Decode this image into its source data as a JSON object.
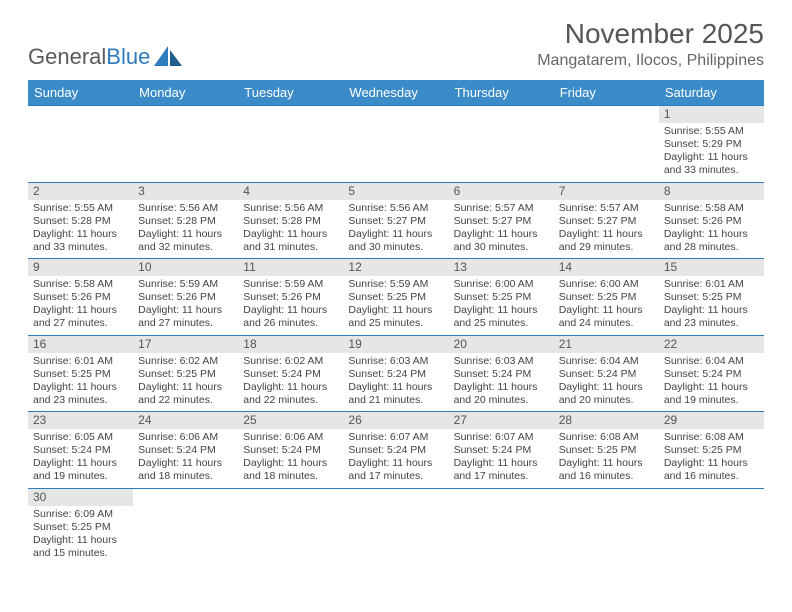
{
  "logo": {
    "general": "General",
    "blue": "Blue"
  },
  "title": "November 2025",
  "location": "Mangatarem, Ilocos, Philippines",
  "colors": {
    "header_bg": "#3b8bc9",
    "header_text": "#ffffff",
    "daynum_bg": "#e6e6e6",
    "border": "#2f7bbf",
    "body_text": "#444444",
    "title_text": "#555555",
    "location_text": "#666666",
    "logo_gray": "#5a5a5a",
    "logo_blue": "#2f7bbf",
    "page_bg": "#ffffff"
  },
  "font": {
    "family": "Arial",
    "th_size": 13,
    "td_size": 10.5,
    "title_size": 28,
    "location_size": 16
  },
  "daynames": [
    "Sunday",
    "Monday",
    "Tuesday",
    "Wednesday",
    "Thursday",
    "Friday",
    "Saturday"
  ],
  "weeks": [
    [
      null,
      null,
      null,
      null,
      null,
      null,
      {
        "n": "1",
        "sr": "Sunrise: 5:55 AM",
        "ss": "Sunset: 5:29 PM",
        "dl": "Daylight: 11 hours and 33 minutes."
      }
    ],
    [
      {
        "n": "2",
        "sr": "Sunrise: 5:55 AM",
        "ss": "Sunset: 5:28 PM",
        "dl": "Daylight: 11 hours and 33 minutes."
      },
      {
        "n": "3",
        "sr": "Sunrise: 5:56 AM",
        "ss": "Sunset: 5:28 PM",
        "dl": "Daylight: 11 hours and 32 minutes."
      },
      {
        "n": "4",
        "sr": "Sunrise: 5:56 AM",
        "ss": "Sunset: 5:28 PM",
        "dl": "Daylight: 11 hours and 31 minutes."
      },
      {
        "n": "5",
        "sr": "Sunrise: 5:56 AM",
        "ss": "Sunset: 5:27 PM",
        "dl": "Daylight: 11 hours and 30 minutes."
      },
      {
        "n": "6",
        "sr": "Sunrise: 5:57 AM",
        "ss": "Sunset: 5:27 PM",
        "dl": "Daylight: 11 hours and 30 minutes."
      },
      {
        "n": "7",
        "sr": "Sunrise: 5:57 AM",
        "ss": "Sunset: 5:27 PM",
        "dl": "Daylight: 11 hours and 29 minutes."
      },
      {
        "n": "8",
        "sr": "Sunrise: 5:58 AM",
        "ss": "Sunset: 5:26 PM",
        "dl": "Daylight: 11 hours and 28 minutes."
      }
    ],
    [
      {
        "n": "9",
        "sr": "Sunrise: 5:58 AM",
        "ss": "Sunset: 5:26 PM",
        "dl": "Daylight: 11 hours and 27 minutes."
      },
      {
        "n": "10",
        "sr": "Sunrise: 5:59 AM",
        "ss": "Sunset: 5:26 PM",
        "dl": "Daylight: 11 hours and 27 minutes."
      },
      {
        "n": "11",
        "sr": "Sunrise: 5:59 AM",
        "ss": "Sunset: 5:26 PM",
        "dl": "Daylight: 11 hours and 26 minutes."
      },
      {
        "n": "12",
        "sr": "Sunrise: 5:59 AM",
        "ss": "Sunset: 5:25 PM",
        "dl": "Daylight: 11 hours and 25 minutes."
      },
      {
        "n": "13",
        "sr": "Sunrise: 6:00 AM",
        "ss": "Sunset: 5:25 PM",
        "dl": "Daylight: 11 hours and 25 minutes."
      },
      {
        "n": "14",
        "sr": "Sunrise: 6:00 AM",
        "ss": "Sunset: 5:25 PM",
        "dl": "Daylight: 11 hours and 24 minutes."
      },
      {
        "n": "15",
        "sr": "Sunrise: 6:01 AM",
        "ss": "Sunset: 5:25 PM",
        "dl": "Daylight: 11 hours and 23 minutes."
      }
    ],
    [
      {
        "n": "16",
        "sr": "Sunrise: 6:01 AM",
        "ss": "Sunset: 5:25 PM",
        "dl": "Daylight: 11 hours and 23 minutes."
      },
      {
        "n": "17",
        "sr": "Sunrise: 6:02 AM",
        "ss": "Sunset: 5:25 PM",
        "dl": "Daylight: 11 hours and 22 minutes."
      },
      {
        "n": "18",
        "sr": "Sunrise: 6:02 AM",
        "ss": "Sunset: 5:24 PM",
        "dl": "Daylight: 11 hours and 22 minutes."
      },
      {
        "n": "19",
        "sr": "Sunrise: 6:03 AM",
        "ss": "Sunset: 5:24 PM",
        "dl": "Daylight: 11 hours and 21 minutes."
      },
      {
        "n": "20",
        "sr": "Sunrise: 6:03 AM",
        "ss": "Sunset: 5:24 PM",
        "dl": "Daylight: 11 hours and 20 minutes."
      },
      {
        "n": "21",
        "sr": "Sunrise: 6:04 AM",
        "ss": "Sunset: 5:24 PM",
        "dl": "Daylight: 11 hours and 20 minutes."
      },
      {
        "n": "22",
        "sr": "Sunrise: 6:04 AM",
        "ss": "Sunset: 5:24 PM",
        "dl": "Daylight: 11 hours and 19 minutes."
      }
    ],
    [
      {
        "n": "23",
        "sr": "Sunrise: 6:05 AM",
        "ss": "Sunset: 5:24 PM",
        "dl": "Daylight: 11 hours and 19 minutes."
      },
      {
        "n": "24",
        "sr": "Sunrise: 6:06 AM",
        "ss": "Sunset: 5:24 PM",
        "dl": "Daylight: 11 hours and 18 minutes."
      },
      {
        "n": "25",
        "sr": "Sunrise: 6:06 AM",
        "ss": "Sunset: 5:24 PM",
        "dl": "Daylight: 11 hours and 18 minutes."
      },
      {
        "n": "26",
        "sr": "Sunrise: 6:07 AM",
        "ss": "Sunset: 5:24 PM",
        "dl": "Daylight: 11 hours and 17 minutes."
      },
      {
        "n": "27",
        "sr": "Sunrise: 6:07 AM",
        "ss": "Sunset: 5:24 PM",
        "dl": "Daylight: 11 hours and 17 minutes."
      },
      {
        "n": "28",
        "sr": "Sunrise: 6:08 AM",
        "ss": "Sunset: 5:25 PM",
        "dl": "Daylight: 11 hours and 16 minutes."
      },
      {
        "n": "29",
        "sr": "Sunrise: 6:08 AM",
        "ss": "Sunset: 5:25 PM",
        "dl": "Daylight: 11 hours and 16 minutes."
      }
    ],
    [
      {
        "n": "30",
        "sr": "Sunrise: 6:09 AM",
        "ss": "Sunset: 5:25 PM",
        "dl": "Daylight: 11 hours and 15 minutes."
      },
      null,
      null,
      null,
      null,
      null,
      null
    ]
  ]
}
